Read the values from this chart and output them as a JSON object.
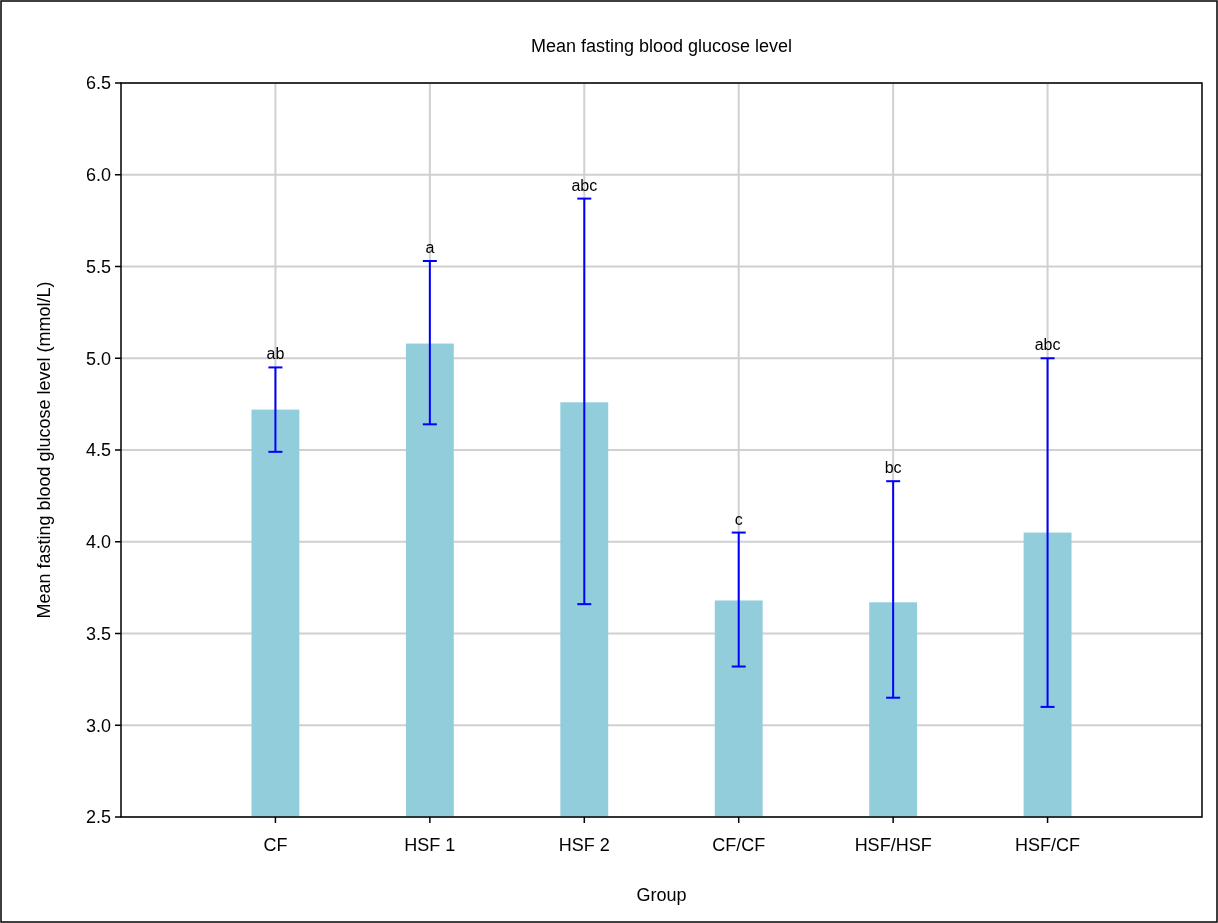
{
  "chart_data": {
    "type": "bar",
    "title": "Mean fasting blood glucose level",
    "xlabel": "Group",
    "ylabel": "Mean fasting blood glucose level (mmol/L)",
    "categories": [
      "CF",
      "HSF 1",
      "HSF 2",
      "CF/CF",
      "HSF/HSF",
      "HSF/CF"
    ],
    "values": [
      4.72,
      5.08,
      4.76,
      3.68,
      3.67,
      4.05
    ],
    "errors": [
      [
        4.49,
        4.95
      ],
      [
        4.64,
        5.53
      ],
      [
        3.66,
        5.87
      ],
      [
        3.32,
        4.05
      ],
      [
        3.15,
        4.33
      ],
      [
        3.1,
        5.0
      ]
    ],
    "color": "#92cddc",
    "ylim": [
      2.5,
      6.5
    ],
    "yticks": [
      {
        "value": 2.5,
        "label": "2.5"
      },
      {
        "value": 3,
        "label": "3.0"
      },
      {
        "value": 3.5,
        "label": "3.5"
      },
      {
        "value": 4,
        "label": "4.0"
      },
      {
        "value": 4.5,
        "label": "4.5"
      },
      {
        "value": 5,
        "label": "5.0"
      },
      {
        "value": 5.5,
        "label": "5.5"
      },
      {
        "value": 6,
        "label": "6.0"
      },
      {
        "value": 6.5,
        "label": "6.5"
      }
    ],
    "grid": true,
    "annotations": [
      {
        "text": "ab",
        "x": "CF",
        "y": 4.95
      },
      {
        "text": "a",
        "x": "HSF 1",
        "y": 5.53
      },
      {
        "text": "abc",
        "x": "HSF 2",
        "y": 5.87
      },
      {
        "text": "c",
        "x": "CF/CF",
        "y": 4.05
      },
      {
        "text": "bc",
        "x": "HSF/HSF",
        "y": 4.33
      },
      {
        "text": "abc",
        "x": "HSF/CF",
        "y": 5.0
      }
    ]
  }
}
